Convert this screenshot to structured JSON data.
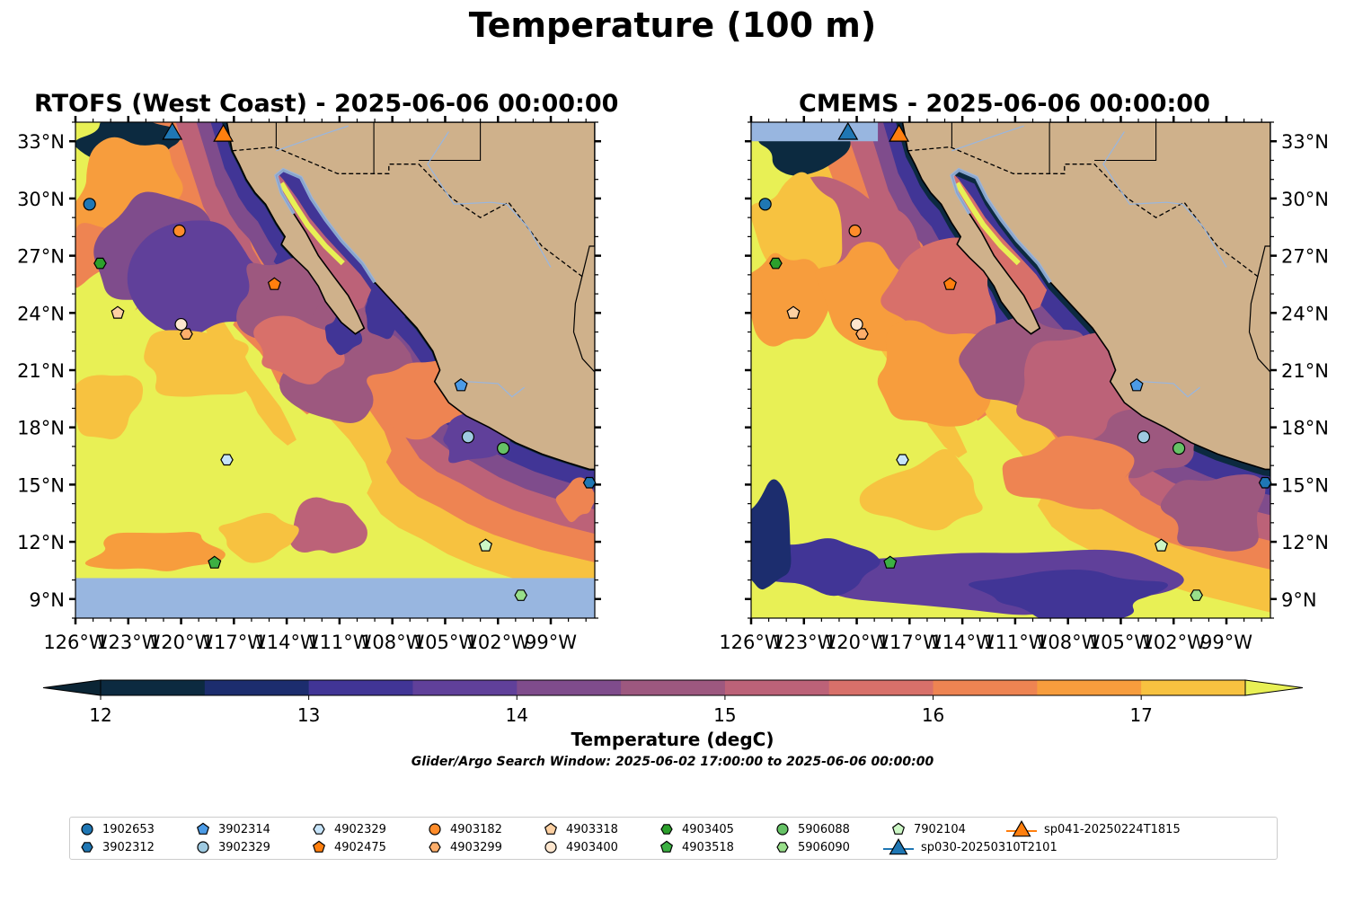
{
  "suptitle": "Temperature (100 m)",
  "panels": [
    {
      "title": "RTOFS (West Coast) - 2025-06-06 00:00:00"
    },
    {
      "title": "CMEMS - 2025-06-06 00:00:00"
    }
  ],
  "colors": {
    "land": "#cfb18b",
    "ocean_nodata": "#98b6e0",
    "coast": "#000000",
    "rivers": "#98b6e0"
  },
  "chart_data": {
    "type": "heatmap",
    "variable": "Temperature",
    "colorbar": {
      "label": "Temperature (degC)",
      "ticks": [
        12,
        13,
        14,
        15,
        16,
        17
      ],
      "range": [
        12,
        17.5
      ],
      "extend": "both",
      "colors": [
        "#0c2a40",
        "#1c2d6e",
        "#413596",
        "#60409a",
        "#7f4c8c",
        "#9d587f",
        "#bc6278",
        "#d8706a",
        "#ee8452",
        "#f79d3d",
        "#f7c240",
        "#e8f055"
      ],
      "under_color": "#0b2535",
      "over_color": "#e8f055"
    },
    "x_axis": {
      "ticks": [
        "126°W",
        "123°W",
        "120°W",
        "117°W",
        "114°W",
        "111°W",
        "108°W",
        "105°W",
        "102°W",
        "99°W"
      ],
      "range": [
        -126,
        -96.5
      ]
    },
    "y_axis": {
      "ticks": [
        "9°N",
        "12°N",
        "15°N",
        "18°N",
        "21°N",
        "24°N",
        "27°N",
        "30°N",
        "33°N"
      ],
      "range": [
        8,
        34
      ]
    },
    "search_window": "Glider/Argo Search Window: 2025-06-02 17:00:00 to 2025-06-06 00:00:00",
    "floats": [
      {
        "id": "1902653",
        "marker": "circle",
        "color": "#1f77b4",
        "lon": -125.2,
        "lat": 29.7
      },
      {
        "id": "3902312",
        "marker": "hexagon",
        "color": "#1f77b4",
        "lon": -96.8,
        "lat": 15.1
      },
      {
        "id": "3902314",
        "marker": "pentagon",
        "color": "#4c9be6",
        "lon": -104.1,
        "lat": 20.2
      },
      {
        "id": "3902329",
        "marker": "circle",
        "color": "#9ecae1",
        "lon": -103.7,
        "lat": 17.5
      },
      {
        "id": "4902329",
        "marker": "hexagon",
        "color": "#c6e4fa",
        "lon": -117.4,
        "lat": 16.3
      },
      {
        "id": "4902475",
        "marker": "pentagon",
        "color": "#ff7f0e",
        "lon": -114.7,
        "lat": 25.5
      },
      {
        "id": "4903182",
        "marker": "circle",
        "color": "#ff8c2a",
        "lon": -120.1,
        "lat": 28.3
      },
      {
        "id": "4903299",
        "marker": "hexagon",
        "color": "#fdae6b",
        "lon": -119.7,
        "lat": 22.9
      },
      {
        "id": "4903318",
        "marker": "pentagon",
        "color": "#fdd0a2",
        "lon": -123.6,
        "lat": 24.0
      },
      {
        "id": "4903400",
        "marker": "circle",
        "color": "#fee6ce",
        "lon": -120.0,
        "lat": 23.4
      },
      {
        "id": "4903405",
        "marker": "hexagon",
        "color": "#2ca02c",
        "lon": -124.6,
        "lat": 26.6
      },
      {
        "id": "4903518",
        "marker": "pentagon",
        "color": "#3cb043",
        "lon": -118.1,
        "lat": 10.9
      },
      {
        "id": "5906088",
        "marker": "circle",
        "color": "#66c266",
        "lon": -101.7,
        "lat": 16.9
      },
      {
        "id": "5906090",
        "marker": "hexagon",
        "color": "#98df8a",
        "lon": -100.7,
        "lat": 9.2
      },
      {
        "id": "7902104",
        "marker": "pentagon",
        "color": "#ccf7c5",
        "lon": -102.7,
        "lat": 11.8
      }
    ],
    "gliders": [
      {
        "id": "sp030-20250310T2101",
        "marker": "triangle",
        "color": "#1f77b4",
        "lon": -120.5,
        "lat": 33.5
      },
      {
        "id": "sp041-20250224T1815",
        "marker": "triangle",
        "color": "#ff7f0e",
        "lon": -117.6,
        "lat": 33.4
      }
    ]
  }
}
